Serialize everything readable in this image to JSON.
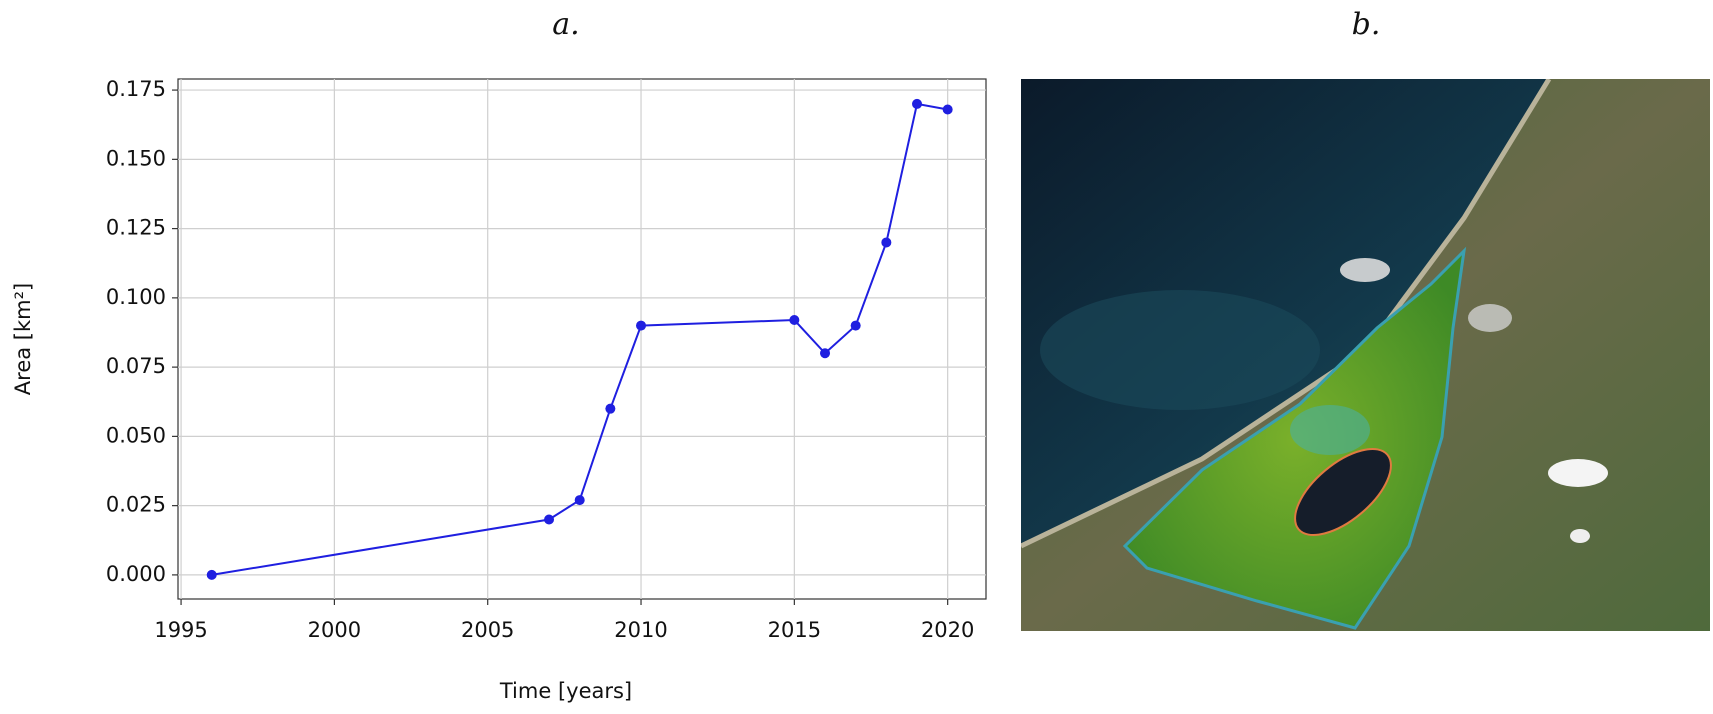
{
  "chart_data": {
    "type": "line",
    "title": "a.",
    "image_title": "b.",
    "x_label": "Time [years]",
    "y_label": "Area [km²]",
    "x": [
      1996,
      2007,
      2008,
      2009,
      2010,
      2015,
      2016,
      2017,
      2018,
      2019,
      2020
    ],
    "series": [
      {
        "name": "Area",
        "color": "#1f1fe0",
        "values": [
          0,
          0.02,
          0.027,
          0.06,
          0.09,
          0.092,
          0.08,
          0.09,
          0.12,
          0.17,
          0.168
        ]
      }
    ],
    "xlim": [
      1994.9,
      2021.25
    ],
    "xticks": [
      1995,
      2000,
      2005,
      2010,
      2015,
      2020
    ],
    "ylim": [
      -0.0087,
      0.179
    ],
    "yticks": [
      {
        "value": 0,
        "label": "0.000"
      },
      {
        "value": 0.025,
        "label": "0.025"
      },
      {
        "value": 0.05,
        "label": "0.050"
      },
      {
        "value": 0.075,
        "label": "0.075"
      },
      {
        "value": 0.1,
        "label": "0.100"
      },
      {
        "value": 0.125,
        "label": "0.125"
      },
      {
        "value": 0.15,
        "label": "0.150"
      },
      {
        "value": 0.175,
        "label": "0.175"
      }
    ],
    "grid": true
  }
}
